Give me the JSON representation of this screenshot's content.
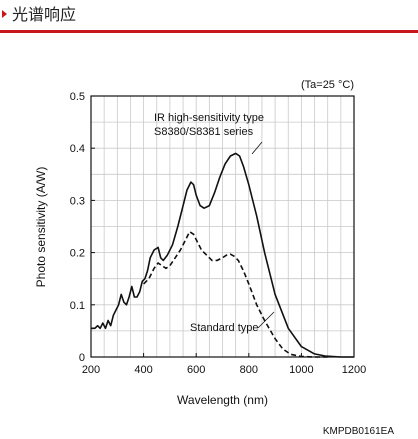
{
  "header": {
    "title": "光谱响应",
    "accent_color": "#c8161d"
  },
  "chart_data": {
    "type": "line",
    "title": "",
    "condition_label": "(Ta=25 °C)",
    "xlabel": "Wavelength (nm)",
    "ylabel": "Photo sensitivity (A/W)",
    "xlim": [
      200,
      1200
    ],
    "ylim": [
      0,
      0.5
    ],
    "x_ticks": [
      200,
      400,
      600,
      800,
      1000,
      1200
    ],
    "y_ticks": [
      0,
      0.1,
      0.2,
      0.3,
      0.4,
      0.5
    ],
    "y_tick_labels": [
      "0",
      "0.1",
      "0.2",
      "0.3",
      "0.4",
      "0.5"
    ],
    "grid": true,
    "series": [
      {
        "name": "IR high-sensitivity type S8380/S8381 series",
        "name_lines": [
          "IR high-sensitivity type",
          "S8380/S8381 series"
        ],
        "style": "solid",
        "x": [
          200,
          215,
          225,
          235,
          245,
          255,
          265,
          275,
          285,
          295,
          305,
          315,
          325,
          335,
          345,
          355,
          365,
          375,
          385,
          395,
          405,
          415,
          425,
          440,
          455,
          465,
          475,
          490,
          510,
          530,
          550,
          565,
          580,
          590,
          600,
          615,
          630,
          650,
          670,
          690,
          710,
          730,
          750,
          765,
          780,
          800,
          830,
          860,
          900,
          950,
          1000,
          1050,
          1090,
          1120,
          1150,
          1180,
          1200
        ],
        "y": [
          0.055,
          0.055,
          0.06,
          0.055,
          0.065,
          0.055,
          0.07,
          0.06,
          0.08,
          0.09,
          0.1,
          0.12,
          0.105,
          0.1,
          0.115,
          0.135,
          0.115,
          0.115,
          0.125,
          0.145,
          0.15,
          0.165,
          0.19,
          0.205,
          0.21,
          0.19,
          0.185,
          0.195,
          0.215,
          0.25,
          0.29,
          0.32,
          0.335,
          0.33,
          0.31,
          0.29,
          0.285,
          0.29,
          0.315,
          0.345,
          0.37,
          0.385,
          0.39,
          0.385,
          0.365,
          0.33,
          0.27,
          0.2,
          0.12,
          0.055,
          0.02,
          0.006,
          0.002,
          0.001,
          0.0,
          0.0,
          0.0
        ]
      },
      {
        "name": "Standard type",
        "style": "dashed",
        "x": [
          400,
          420,
          440,
          455,
          470,
          485,
          500,
          520,
          540,
          560,
          575,
          590,
          605,
          620,
          640,
          660,
          680,
          700,
          715,
          730,
          745,
          760,
          780,
          800,
          830,
          860,
          900,
          930,
          960,
          1000,
          1050,
          1100
        ],
        "y": [
          0.14,
          0.15,
          0.17,
          0.18,
          0.175,
          0.17,
          0.175,
          0.19,
          0.205,
          0.225,
          0.24,
          0.235,
          0.22,
          0.205,
          0.195,
          0.185,
          0.185,
          0.19,
          0.195,
          0.197,
          0.193,
          0.185,
          0.165,
          0.14,
          0.1,
          0.07,
          0.035,
          0.015,
          0.005,
          0.001,
          0.0,
          0.0
        ]
      }
    ],
    "document_code": "KMPDB0161EA"
  }
}
